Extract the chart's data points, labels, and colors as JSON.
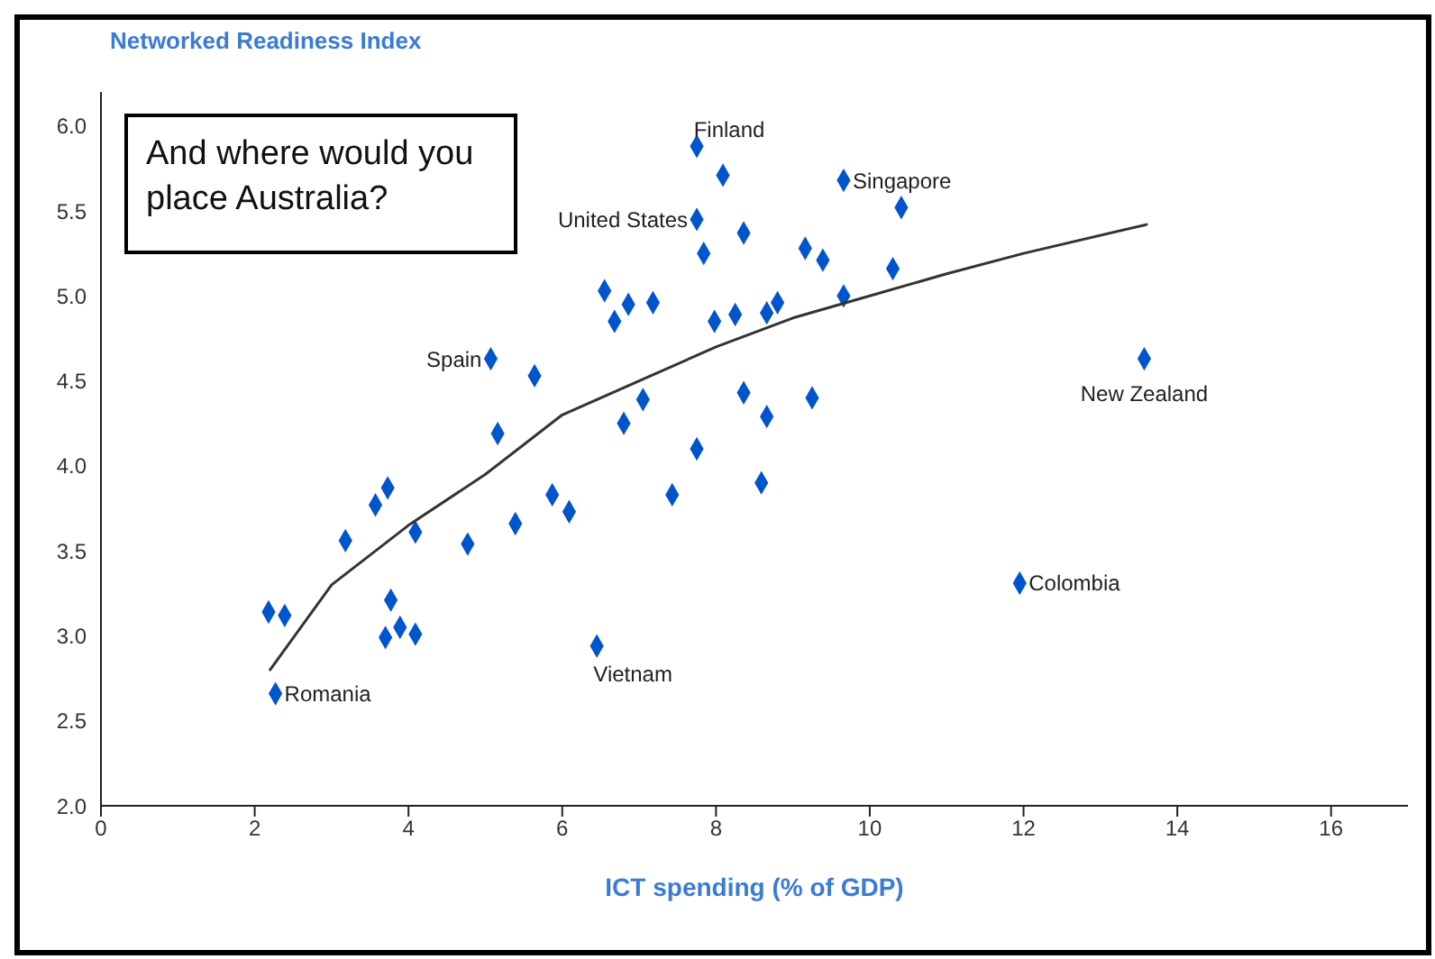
{
  "chart_data": {
    "type": "scatter",
    "ylabel": "Networked Readiness Index",
    "xlabel": "ICT spending (% of GDP)",
    "xlim": [
      0,
      17
    ],
    "xticks": [
      0,
      2,
      4,
      6,
      8,
      10,
      12,
      14,
      16
    ],
    "ylim": [
      2,
      6.2
    ],
    "yticks": [
      {
        "value": 2,
        "label": "2.0"
      },
      {
        "value": 2.5,
        "label": "2.5"
      },
      {
        "value": 3,
        "label": "3.0"
      },
      {
        "value": 3.5,
        "label": "3.5"
      },
      {
        "value": 4,
        "label": "4.0"
      },
      {
        "value": 4.5,
        "label": "4.5"
      },
      {
        "value": 5,
        "label": "5.0"
      },
      {
        "value": 5.5,
        "label": "5.5"
      },
      {
        "value": 6,
        "label": "6.0"
      }
    ],
    "grid": false,
    "legend": false,
    "marker": "diamond",
    "series": [
      {
        "type": "scatter",
        "color": "#0055cc",
        "x": [
          7.75,
          8.09,
          9.66,
          10.41,
          7.75,
          8.36,
          7.84,
          9.16,
          9.39,
          10.3,
          6.55,
          7.18,
          6.86,
          6.68,
          7.98,
          8.25,
          8.66,
          8.8,
          9.66,
          5.07,
          5.64,
          13.57,
          7.05,
          6.8,
          8.36,
          9.25,
          8.66,
          5.16,
          7.75,
          8.59,
          7.43,
          5.87,
          6.09,
          5.39,
          4.77,
          4.09,
          3.18,
          3.57,
          3.73,
          3.77,
          3.7,
          3.89,
          4.09,
          2.18,
          2.39,
          2.27,
          6.45,
          11.95
        ],
        "values": [
          5.88,
          5.71,
          5.68,
          5.52,
          5.45,
          5.37,
          5.25,
          5.28,
          5.21,
          5.16,
          5.03,
          4.96,
          4.95,
          4.85,
          4.85,
          4.89,
          4.9,
          4.96,
          5.0,
          4.63,
          4.53,
          4.63,
          4.39,
          4.25,
          4.43,
          4.4,
          4.29,
          4.19,
          4.1,
          3.9,
          3.83,
          3.83,
          3.73,
          3.66,
          3.54,
          3.61,
          3.56,
          3.77,
          3.87,
          3.21,
          2.99,
          3.05,
          3.01,
          3.14,
          3.12,
          2.66,
          2.94,
          3.31
        ]
      },
      {
        "type": "line",
        "color": "#333333",
        "line_style": "solid",
        "marker": "none",
        "x": [
          2.2,
          3,
          4,
          5,
          6,
          7,
          8,
          9,
          10,
          11,
          12,
          13.6
        ],
        "values": [
          2.8,
          3.3,
          3.65,
          3.95,
          4.3,
          4.5,
          4.7,
          4.87,
          5.0,
          5.13,
          5.25,
          5.42
        ]
      }
    ],
    "annotations": [
      "And where would you place Australia?",
      {
        "text": "Finland",
        "x": 7.75,
        "y": 5.88
      },
      {
        "text": "Singapore",
        "x": 9.66,
        "y": 5.68
      },
      {
        "text": "United States",
        "x": 7.75,
        "y": 5.45
      },
      {
        "text": "Spain",
        "x": 5.07,
        "y": 4.63
      },
      {
        "text": "New Zealand",
        "x": 13.57,
        "y": 4.63
      },
      {
        "text": "Colombia",
        "x": 11.95,
        "y": 3.31
      },
      {
        "text": "Vietnam",
        "x": 6.45,
        "y": 2.94
      },
      {
        "text": "Romania",
        "x": 2.27,
        "y": 2.66
      }
    ]
  }
}
